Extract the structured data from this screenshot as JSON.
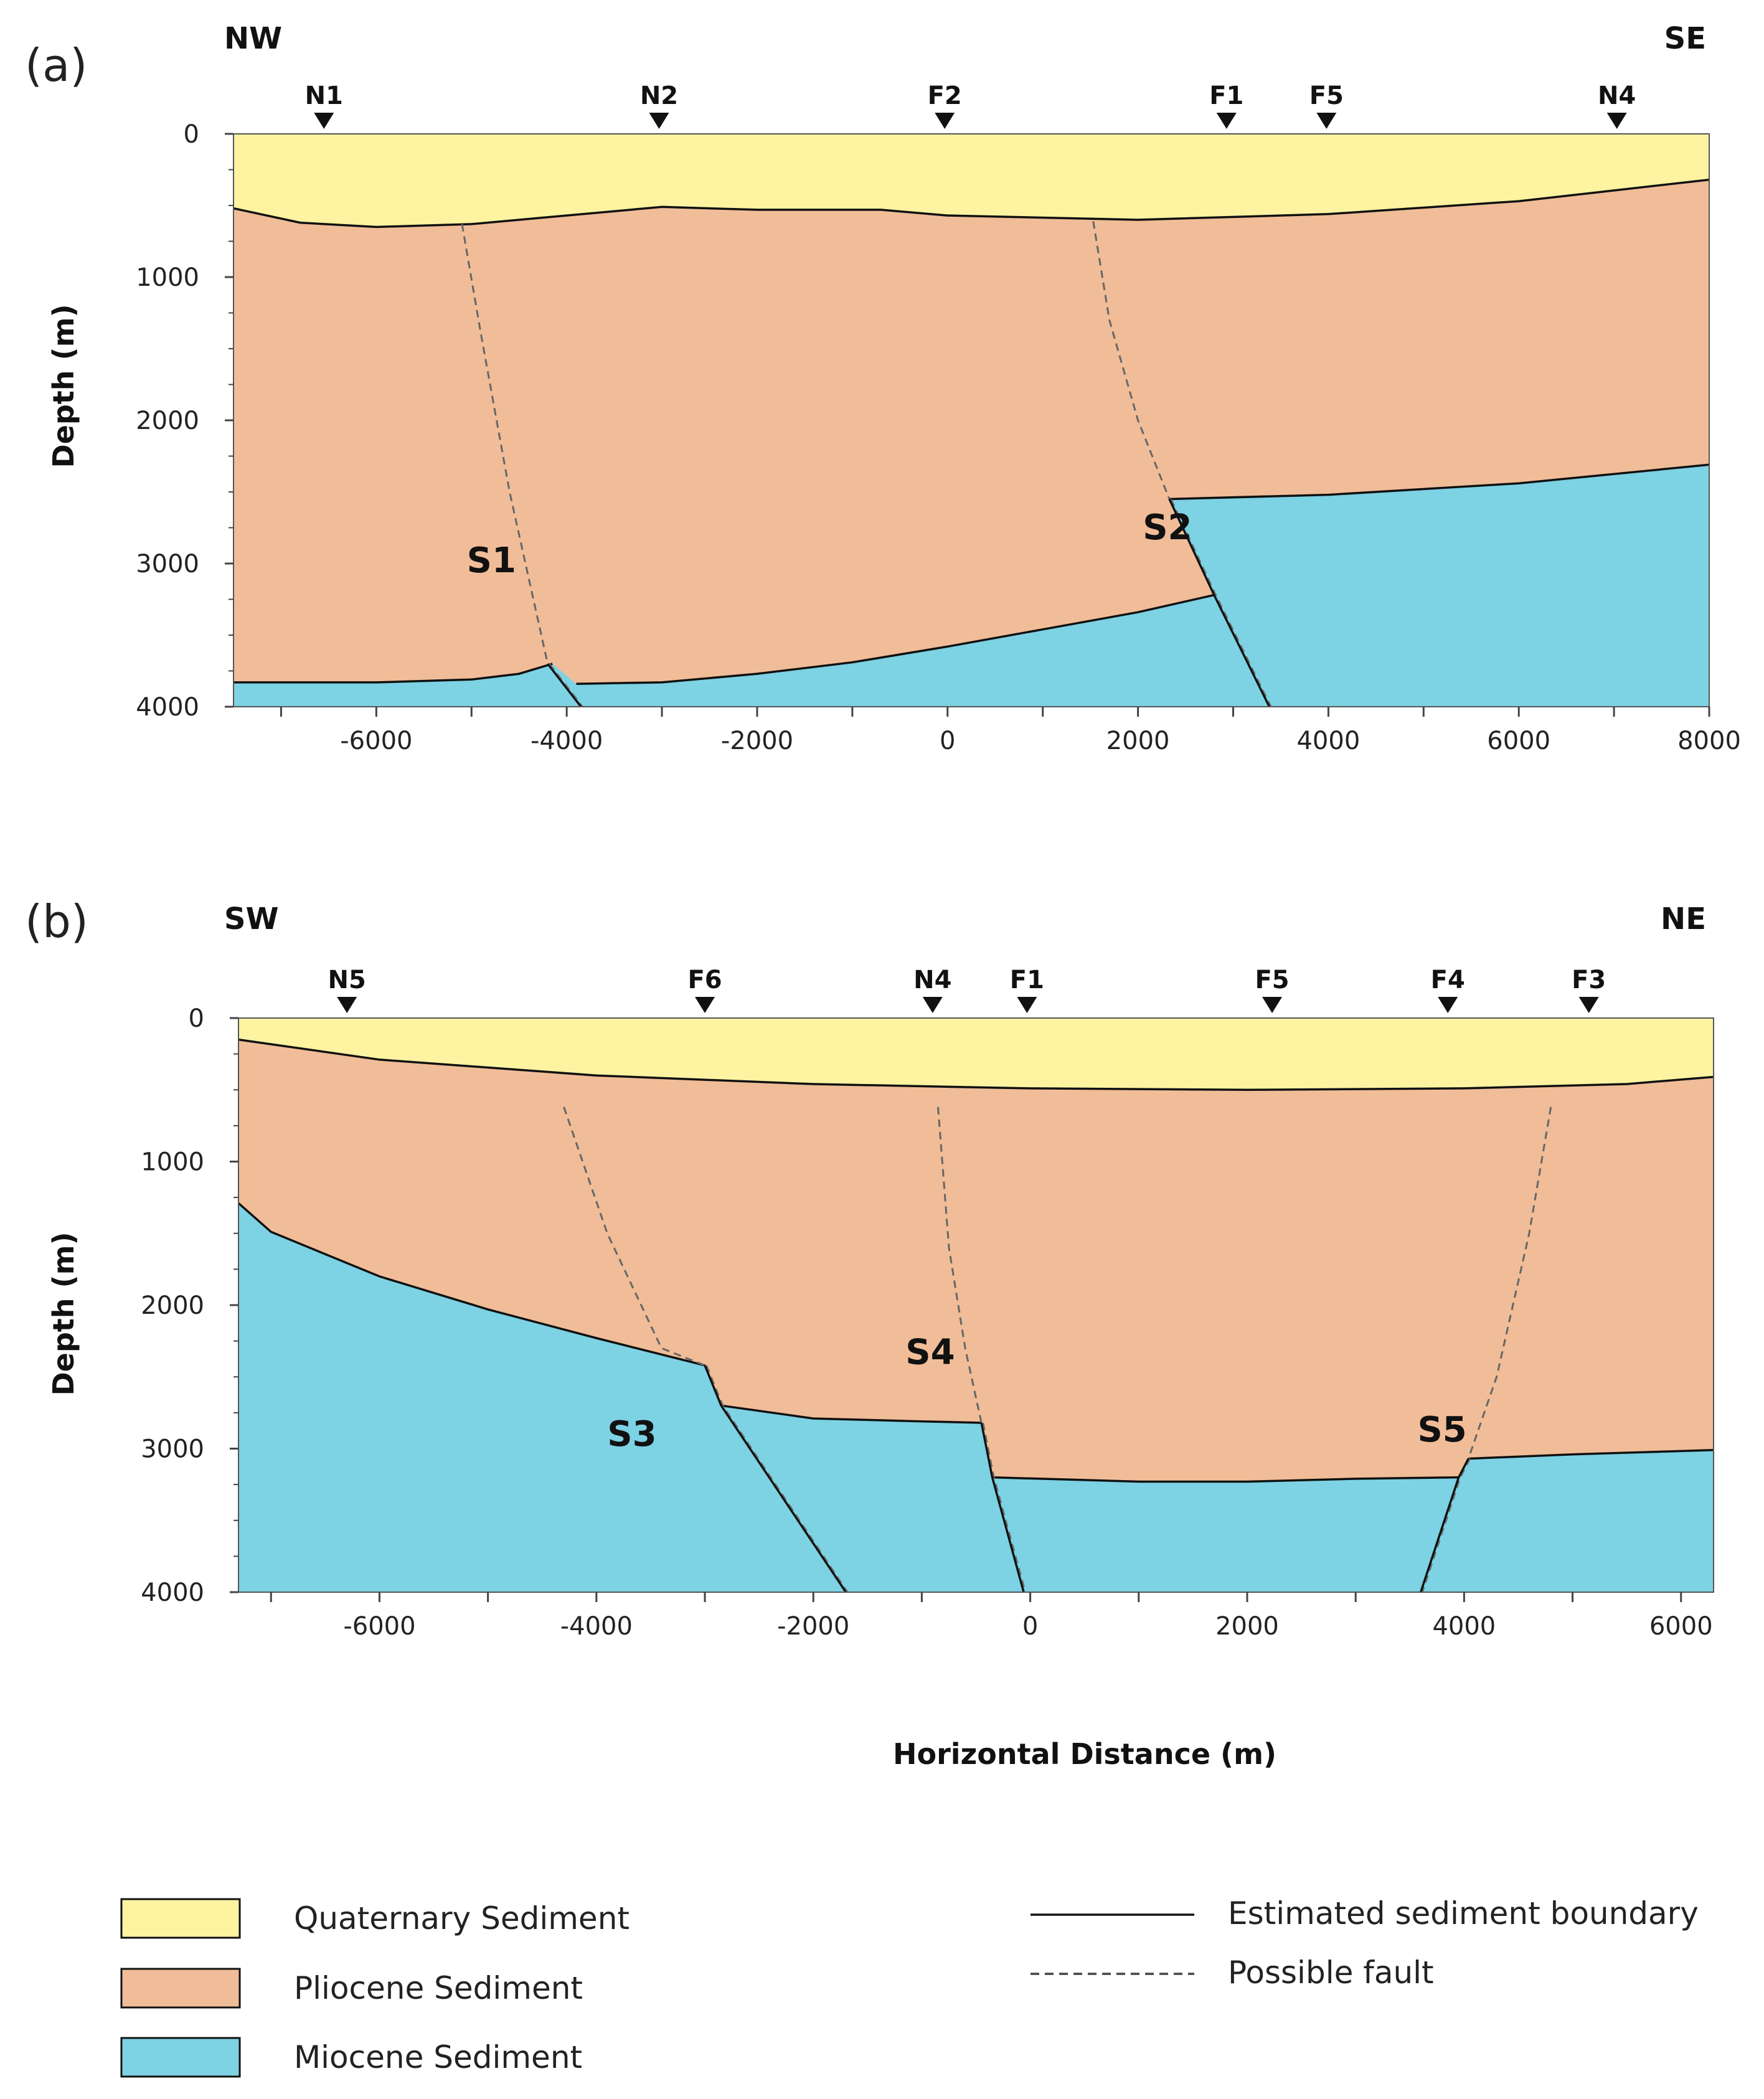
{
  "colors": {
    "quaternary": "#fdf3a1",
    "pliocene": "#f0bd98",
    "miocene": "#7dd2e3",
    "boundary": "#111111",
    "fault": "#666666"
  },
  "chart_data": [
    {
      "type": "cross-section",
      "panel_label": "(a)",
      "direction_left": "NW",
      "direction_right": "SE",
      "ylabel": "Depth (m)",
      "xlabel": "",
      "xlim": [
        -7500,
        8000
      ],
      "ylim": [
        0,
        4000
      ],
      "x_ticks": [
        -6000,
        -4000,
        -2000,
        0,
        2000,
        4000,
        6000,
        8000
      ],
      "x_tick_labels": [
        "-6000",
        "-4000",
        "-2000",
        "0",
        "2000",
        "4000",
        "6000",
        "8000"
      ],
      "y_ticks": [
        0,
        1000,
        2000,
        3000,
        4000
      ],
      "y_tick_labels": [
        "0",
        "1000",
        "2000",
        "3000",
        "4000"
      ],
      "stations": [
        {
          "name": "N1",
          "x": -6550
        },
        {
          "name": "N2",
          "x": -3030
        },
        {
          "name": "F2",
          "x": -30
        },
        {
          "name": "F1",
          "x": 2930
        },
        {
          "name": "F5",
          "x": 3980
        },
        {
          "name": "N4",
          "x": 7030
        }
      ],
      "quaternary_base": [
        [
          -7500,
          520
        ],
        [
          -6800,
          620
        ],
        [
          -6000,
          650
        ],
        [
          -5000,
          630
        ],
        [
          -3000,
          510
        ],
        [
          -2000,
          530
        ],
        [
          -700,
          530
        ],
        [
          0,
          570
        ],
        [
          2000,
          600
        ],
        [
          4000,
          560
        ],
        [
          6000,
          470
        ],
        [
          8000,
          320
        ]
      ],
      "pliocene_base_segments": [
        [
          [
            -7500,
            3830
          ],
          [
            -6000,
            3830
          ],
          [
            -5000,
            3810
          ],
          [
            -4500,
            3770
          ],
          [
            -4150,
            3700
          ]
        ],
        [
          [
            -3900,
            3840
          ],
          [
            -3000,
            3830
          ],
          [
            -2000,
            3770
          ],
          [
            -1000,
            3690
          ],
          [
            0,
            3580
          ],
          [
            1000,
            3460
          ],
          [
            2000,
            3340
          ],
          [
            2800,
            3220
          ]
        ],
        [
          [
            2330,
            2550
          ],
          [
            4000,
            2520
          ],
          [
            6000,
            2440
          ],
          [
            8000,
            2310
          ]
        ]
      ],
      "faults": [
        {
          "label": "S1",
          "label_x": -5050,
          "label_y": 3060,
          "points": [
            [
              -5100,
              630
            ],
            [
              -4900,
              1400
            ],
            [
              -4600,
              2500
            ],
            [
              -4200,
              3700
            ],
            [
              -3850,
              4000
            ]
          ],
          "upper_dashed_to": 3700
        },
        {
          "label": "S2",
          "label_x": 2050,
          "label_y": 2830,
          "points": [
            [
              1530,
              610
            ],
            [
              1700,
              1300
            ],
            [
              2000,
              2000
            ],
            [
              2330,
              2550
            ],
            [
              2800,
              3220
            ],
            [
              3380,
              4000
            ]
          ],
          "upper_dashed_to": 2550
        }
      ]
    },
    {
      "type": "cross-section",
      "panel_label": "(b)",
      "direction_left": "SW",
      "direction_right": "NE",
      "ylabel": "Depth (m)",
      "xlabel": "Horizontal Distance (m)",
      "xlim": [
        -7300,
        6300
      ],
      "ylim": [
        0,
        4000
      ],
      "x_ticks": [
        -6000,
        -4000,
        -2000,
        0,
        2000,
        4000,
        6000
      ],
      "x_tick_labels": [
        "-6000",
        "-4000",
        "-2000",
        "0",
        "2000",
        "4000",
        "6000"
      ],
      "y_ticks": [
        0,
        1000,
        2000,
        3000,
        4000
      ],
      "y_tick_labels": [
        "0",
        "1000",
        "2000",
        "3000",
        "4000"
      ],
      "stations": [
        {
          "name": "N5",
          "x": -6300
        },
        {
          "name": "F6",
          "x": -3000
        },
        {
          "name": "N4",
          "x": -900
        },
        {
          "name": "F1",
          "x": -30
        },
        {
          "name": "F5",
          "x": 2230
        },
        {
          "name": "F4",
          "x": 3850
        },
        {
          "name": "F3",
          "x": 5150
        }
      ],
      "quaternary_base": [
        [
          -7300,
          150
        ],
        [
          -6000,
          290
        ],
        [
          -4000,
          400
        ],
        [
          -2000,
          460
        ],
        [
          0,
          490
        ],
        [
          2000,
          500
        ],
        [
          4000,
          490
        ],
        [
          5500,
          460
        ],
        [
          6300,
          410
        ]
      ],
      "pliocene_base_segments": [
        [
          [
            -7300,
            1290
          ],
          [
            -7000,
            1490
          ],
          [
            -6000,
            1800
          ],
          [
            -5000,
            2030
          ],
          [
            -4000,
            2230
          ],
          [
            -3000,
            2420
          ]
        ],
        [
          [
            -2850,
            2700
          ],
          [
            -2000,
            2790
          ],
          [
            -1000,
            2810
          ],
          [
            -450,
            2820
          ]
        ],
        [
          [
            -350,
            3200
          ],
          [
            1000,
            3230
          ],
          [
            2000,
            3230
          ],
          [
            3000,
            3210
          ],
          [
            3950,
            3200
          ]
        ],
        [
          [
            4040,
            3070
          ],
          [
            5000,
            3040
          ],
          [
            6300,
            3010
          ]
        ]
      ],
      "faults": [
        {
          "label": "S3",
          "label_x": -3900,
          "label_y": 2980,
          "points": [
            [
              -4300,
              620
            ],
            [
              -3900,
              1500
            ],
            [
              -3400,
              2300
            ],
            [
              -3000,
              2420
            ],
            [
              -2850,
              2700
            ],
            [
              -1700,
              4000
            ]
          ],
          "upper_dashed_to": 2420
        },
        {
          "label": "S4",
          "label_x": -1150,
          "label_y": 2410,
          "points": [
            [
              -850,
              620
            ],
            [
              -750,
              1600
            ],
            [
              -600,
              2300
            ],
            [
              -450,
              2820
            ],
            [
              -350,
              3200
            ],
            [
              -60,
              4000
            ]
          ],
          "upper_dashed_to": 2820
        },
        {
          "label": "S5",
          "label_x": 3570,
          "label_y": 2950,
          "points": [
            [
              4800,
              620
            ],
            [
              4600,
              1500
            ],
            [
              4300,
              2500
            ],
            [
              4040,
              3070
            ],
            [
              3950,
              3200
            ],
            [
              3600,
              4000
            ]
          ],
          "upper_dashed_to": 3070
        }
      ]
    }
  ],
  "legend": {
    "fills": [
      {
        "label": "Quaternary Sediment",
        "color_key": "quaternary"
      },
      {
        "label": "Pliocene Sediment",
        "color_key": "pliocene"
      },
      {
        "label": "Miocene Sediment",
        "color_key": "miocene"
      }
    ],
    "lines": [
      {
        "label": "Estimated sediment boundary",
        "style": "solid"
      },
      {
        "label": "Possible fault",
        "style": "dashed"
      }
    ]
  }
}
